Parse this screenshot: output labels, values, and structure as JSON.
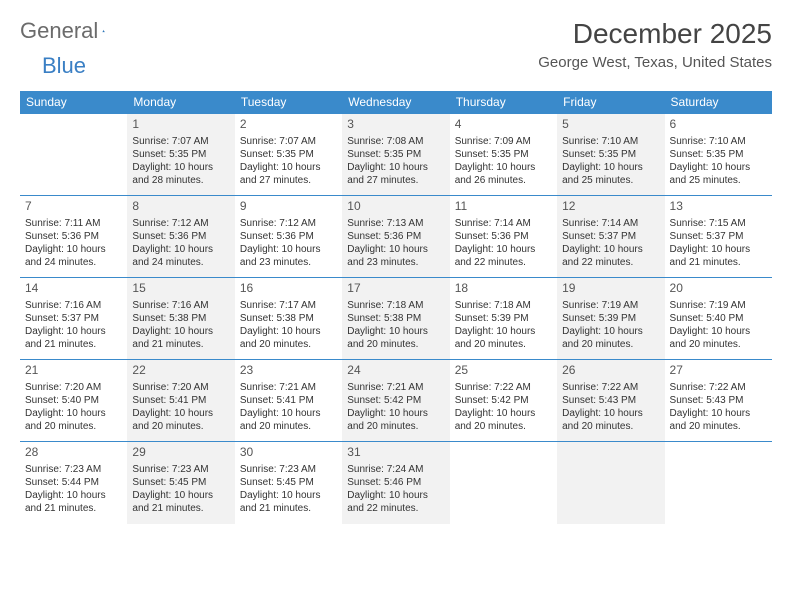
{
  "logo": {
    "text1": "General",
    "text2": "Blue"
  },
  "title": "December 2025",
  "location": "George West, Texas, United States",
  "colors": {
    "header_bg": "#3a8acb",
    "header_text": "#ffffff",
    "alt_cell_bg": "#f2f2f2",
    "border": "#3a8acb",
    "logo_gray": "#6b6b6b",
    "logo_blue": "#3a7fc4"
  },
  "weekdays": [
    "Sunday",
    "Monday",
    "Tuesday",
    "Wednesday",
    "Thursday",
    "Friday",
    "Saturday"
  ],
  "weeks": [
    [
      null,
      {
        "n": "1",
        "sr": "7:07 AM",
        "ss": "5:35 PM",
        "dl": "10 hours and 28 minutes."
      },
      {
        "n": "2",
        "sr": "7:07 AM",
        "ss": "5:35 PM",
        "dl": "10 hours and 27 minutes."
      },
      {
        "n": "3",
        "sr": "7:08 AM",
        "ss": "5:35 PM",
        "dl": "10 hours and 27 minutes."
      },
      {
        "n": "4",
        "sr": "7:09 AM",
        "ss": "5:35 PM",
        "dl": "10 hours and 26 minutes."
      },
      {
        "n": "5",
        "sr": "7:10 AM",
        "ss": "5:35 PM",
        "dl": "10 hours and 25 minutes."
      },
      {
        "n": "6",
        "sr": "7:10 AM",
        "ss": "5:35 PM",
        "dl": "10 hours and 25 minutes."
      }
    ],
    [
      {
        "n": "7",
        "sr": "7:11 AM",
        "ss": "5:36 PM",
        "dl": "10 hours and 24 minutes."
      },
      {
        "n": "8",
        "sr": "7:12 AM",
        "ss": "5:36 PM",
        "dl": "10 hours and 24 minutes."
      },
      {
        "n": "9",
        "sr": "7:12 AM",
        "ss": "5:36 PM",
        "dl": "10 hours and 23 minutes."
      },
      {
        "n": "10",
        "sr": "7:13 AM",
        "ss": "5:36 PM",
        "dl": "10 hours and 23 minutes."
      },
      {
        "n": "11",
        "sr": "7:14 AM",
        "ss": "5:36 PM",
        "dl": "10 hours and 22 minutes."
      },
      {
        "n": "12",
        "sr": "7:14 AM",
        "ss": "5:37 PM",
        "dl": "10 hours and 22 minutes."
      },
      {
        "n": "13",
        "sr": "7:15 AM",
        "ss": "5:37 PM",
        "dl": "10 hours and 21 minutes."
      }
    ],
    [
      {
        "n": "14",
        "sr": "7:16 AM",
        "ss": "5:37 PM",
        "dl": "10 hours and 21 minutes."
      },
      {
        "n": "15",
        "sr": "7:16 AM",
        "ss": "5:38 PM",
        "dl": "10 hours and 21 minutes."
      },
      {
        "n": "16",
        "sr": "7:17 AM",
        "ss": "5:38 PM",
        "dl": "10 hours and 20 minutes."
      },
      {
        "n": "17",
        "sr": "7:18 AM",
        "ss": "5:38 PM",
        "dl": "10 hours and 20 minutes."
      },
      {
        "n": "18",
        "sr": "7:18 AM",
        "ss": "5:39 PM",
        "dl": "10 hours and 20 minutes."
      },
      {
        "n": "19",
        "sr": "7:19 AM",
        "ss": "5:39 PM",
        "dl": "10 hours and 20 minutes."
      },
      {
        "n": "20",
        "sr": "7:19 AM",
        "ss": "5:40 PM",
        "dl": "10 hours and 20 minutes."
      }
    ],
    [
      {
        "n": "21",
        "sr": "7:20 AM",
        "ss": "5:40 PM",
        "dl": "10 hours and 20 minutes."
      },
      {
        "n": "22",
        "sr": "7:20 AM",
        "ss": "5:41 PM",
        "dl": "10 hours and 20 minutes."
      },
      {
        "n": "23",
        "sr": "7:21 AM",
        "ss": "5:41 PM",
        "dl": "10 hours and 20 minutes."
      },
      {
        "n": "24",
        "sr": "7:21 AM",
        "ss": "5:42 PM",
        "dl": "10 hours and 20 minutes."
      },
      {
        "n": "25",
        "sr": "7:22 AM",
        "ss": "5:42 PM",
        "dl": "10 hours and 20 minutes."
      },
      {
        "n": "26",
        "sr": "7:22 AM",
        "ss": "5:43 PM",
        "dl": "10 hours and 20 minutes."
      },
      {
        "n": "27",
        "sr": "7:22 AM",
        "ss": "5:43 PM",
        "dl": "10 hours and 20 minutes."
      }
    ],
    [
      {
        "n": "28",
        "sr": "7:23 AM",
        "ss": "5:44 PM",
        "dl": "10 hours and 21 minutes."
      },
      {
        "n": "29",
        "sr": "7:23 AM",
        "ss": "5:45 PM",
        "dl": "10 hours and 21 minutes."
      },
      {
        "n": "30",
        "sr": "7:23 AM",
        "ss": "5:45 PM",
        "dl": "10 hours and 21 minutes."
      },
      {
        "n": "31",
        "sr": "7:24 AM",
        "ss": "5:46 PM",
        "dl": "10 hours and 22 minutes."
      },
      null,
      null,
      null
    ]
  ],
  "labels": {
    "sunrise": "Sunrise: ",
    "sunset": "Sunset: ",
    "daylight": "Daylight: "
  }
}
